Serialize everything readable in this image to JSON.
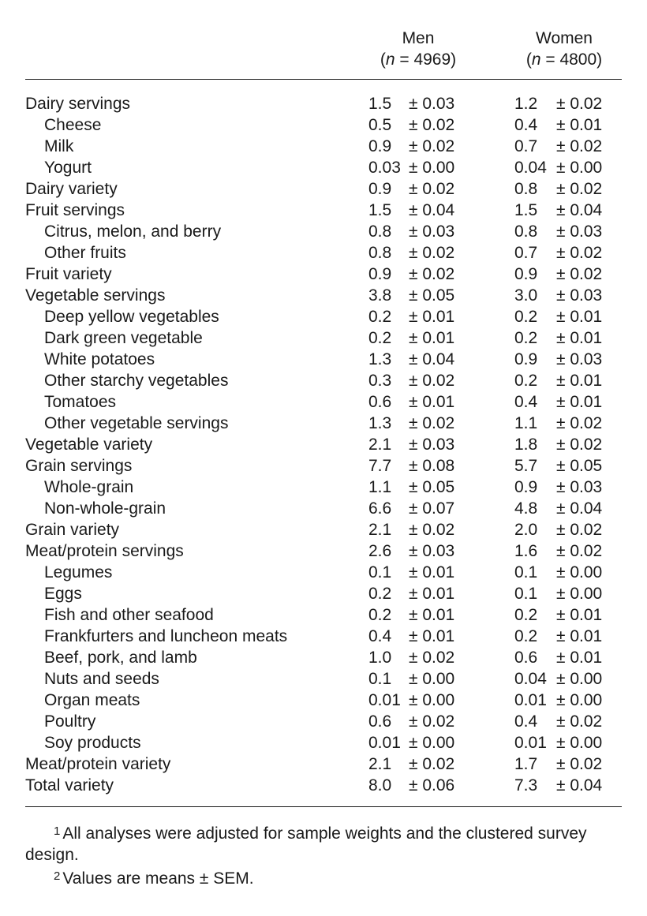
{
  "header": {
    "men_label": "Men",
    "men_n_symbol": "n",
    "men_n_eq": " = 4969)",
    "women_label": "Women",
    "women_n_symbol": "n",
    "women_n_eq": " = 4800)"
  },
  "rows": [
    {
      "label": "Dairy servings",
      "sub": false,
      "men_mean": "1.5",
      "men_sem": "± 0.03",
      "women_mean": "1.2",
      "women_sem": "± 0.02"
    },
    {
      "label": "Cheese",
      "sub": true,
      "men_mean": "0.5",
      "men_sem": "± 0.02",
      "women_mean": "0.4",
      "women_sem": "± 0.01"
    },
    {
      "label": "Milk",
      "sub": true,
      "men_mean": "0.9",
      "men_sem": "± 0.02",
      "women_mean": "0.7",
      "women_sem": "± 0.02"
    },
    {
      "label": "Yogurt",
      "sub": true,
      "men_mean": "0.03",
      "men_sem": "± 0.00",
      "women_mean": "0.04",
      "women_sem": "± 0.00"
    },
    {
      "label": "Dairy variety",
      "sub": false,
      "men_mean": "0.9",
      "men_sem": "± 0.02",
      "women_mean": "0.8",
      "women_sem": "± 0.02"
    },
    {
      "label": "Fruit servings",
      "sub": false,
      "men_mean": "1.5",
      "men_sem": "± 0.04",
      "women_mean": "1.5",
      "women_sem": "± 0.04"
    },
    {
      "label": "Citrus, melon, and berry",
      "sub": true,
      "men_mean": "0.8",
      "men_sem": "± 0.03",
      "women_mean": "0.8",
      "women_sem": "± 0.03"
    },
    {
      "label": "Other fruits",
      "sub": true,
      "men_mean": "0.8",
      "men_sem": "± 0.02",
      "women_mean": "0.7",
      "women_sem": "± 0.02"
    },
    {
      "label": "Fruit variety",
      "sub": false,
      "men_mean": "0.9",
      "men_sem": "± 0.02",
      "women_mean": "0.9",
      "women_sem": "± 0.02"
    },
    {
      "label": "Vegetable servings",
      "sub": false,
      "men_mean": "3.8",
      "men_sem": "± 0.05",
      "women_mean": "3.0",
      "women_sem": "± 0.03"
    },
    {
      "label": "Deep yellow vegetables",
      "sub": true,
      "men_mean": "0.2",
      "men_sem": "± 0.01",
      "women_mean": "0.2",
      "women_sem": "± 0.01"
    },
    {
      "label": "Dark green vegetable",
      "sub": true,
      "men_mean": "0.2",
      "men_sem": "± 0.01",
      "women_mean": "0.2",
      "women_sem": "± 0.01"
    },
    {
      "label": "White potatoes",
      "sub": true,
      "men_mean": "1.3",
      "men_sem": "± 0.04",
      "women_mean": "0.9",
      "women_sem": "± 0.03"
    },
    {
      "label": "Other starchy vegetables",
      "sub": true,
      "men_mean": "0.3",
      "men_sem": "± 0.02",
      "women_mean": "0.2",
      "women_sem": "± 0.01"
    },
    {
      "label": "Tomatoes",
      "sub": true,
      "men_mean": "0.6",
      "men_sem": "± 0.01",
      "women_mean": "0.4",
      "women_sem": "± 0.01"
    },
    {
      "label": "Other vegetable servings",
      "sub": true,
      "men_mean": "1.3",
      "men_sem": "± 0.02",
      "women_mean": "1.1",
      "women_sem": "± 0.02"
    },
    {
      "label": "Vegetable variety",
      "sub": false,
      "men_mean": "2.1",
      "men_sem": "± 0.03",
      "women_mean": "1.8",
      "women_sem": "± 0.02"
    },
    {
      "label": "Grain servings",
      "sub": false,
      "men_mean": "7.7",
      "men_sem": "± 0.08",
      "women_mean": "5.7",
      "women_sem": "± 0.05"
    },
    {
      "label": "Whole-grain",
      "sub": true,
      "men_mean": "1.1",
      "men_sem": "± 0.05",
      "women_mean": "0.9",
      "women_sem": "± 0.03"
    },
    {
      "label": "Non-whole-grain",
      "sub": true,
      "men_mean": "6.6",
      "men_sem": "± 0.07",
      "women_mean": "4.8",
      "women_sem": "± 0.04"
    },
    {
      "label": "Grain variety",
      "sub": false,
      "men_mean": "2.1",
      "men_sem": "± 0.02",
      "women_mean": "2.0",
      "women_sem": "± 0.02"
    },
    {
      "label": "Meat/protein servings",
      "sub": false,
      "men_mean": "2.6",
      "men_sem": "± 0.03",
      "women_mean": "1.6",
      "women_sem": "± 0.02"
    },
    {
      "label": "Legumes",
      "sub": true,
      "men_mean": "0.1",
      "men_sem": "± 0.01",
      "women_mean": "0.1",
      "women_sem": "± 0.00"
    },
    {
      "label": "Eggs",
      "sub": true,
      "men_mean": "0.2",
      "men_sem": "± 0.01",
      "women_mean": "0.1",
      "women_sem": "± 0.00"
    },
    {
      "label": "Fish and other seafood",
      "sub": true,
      "men_mean": "0.2",
      "men_sem": "± 0.01",
      "women_mean": "0.2",
      "women_sem": "± 0.01"
    },
    {
      "label": "Frankfurters and luncheon meats",
      "sub": true,
      "men_mean": "0.4",
      "men_sem": "± 0.01",
      "women_mean": "0.2",
      "women_sem": "± 0.01"
    },
    {
      "label": "Beef, pork, and lamb",
      "sub": true,
      "men_mean": "1.0",
      "men_sem": "± 0.02",
      "women_mean": "0.6",
      "women_sem": "± 0.01"
    },
    {
      "label": "Nuts and seeds",
      "sub": true,
      "men_mean": "0.1",
      "men_sem": "± 0.00",
      "women_mean": "0.04",
      "women_sem": "± 0.00"
    },
    {
      "label": "Organ meats",
      "sub": true,
      "men_mean": "0.01",
      "men_sem": "± 0.00",
      "women_mean": "0.01",
      "women_sem": "± 0.00"
    },
    {
      "label": "Poultry",
      "sub": true,
      "men_mean": "0.6",
      "men_sem": "± 0.02",
      "women_mean": "0.4",
      "women_sem": "± 0.02"
    },
    {
      "label": "Soy products",
      "sub": true,
      "men_mean": "0.01",
      "men_sem": "± 0.00",
      "women_mean": "0.01",
      "women_sem": "± 0.00"
    },
    {
      "label": "Meat/protein variety",
      "sub": false,
      "men_mean": "2.1",
      "men_sem": "± 0.02",
      "women_mean": "1.7",
      "women_sem": "± 0.02"
    },
    {
      "label": "Total variety",
      "sub": false,
      "men_mean": "8.0",
      "men_sem": "± 0.06",
      "women_mean": "7.3",
      "women_sem": "± 0.04"
    }
  ],
  "footnotes": [
    {
      "marker": "1",
      "text": "All analyses were adjusted for sample weights and the clustered survey design."
    },
    {
      "marker": "2",
      "text": "Values are means ± SEM."
    }
  ]
}
